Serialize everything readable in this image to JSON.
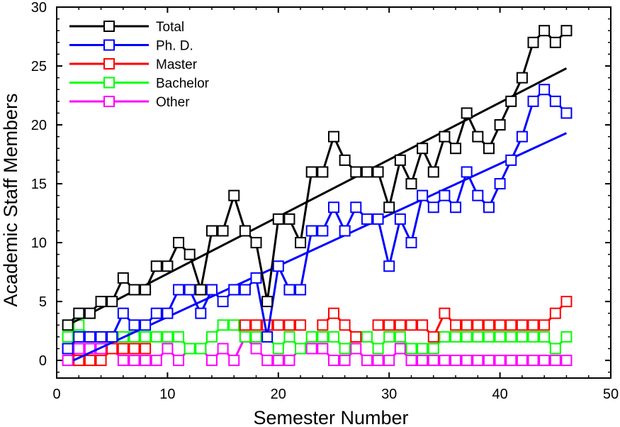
{
  "chart_data": {
    "type": "line",
    "title": "",
    "xlabel": "Semester Number",
    "ylabel": "Academic Staff Members",
    "xlim": [
      0,
      50
    ],
    "ylim": [
      -1.5,
      30
    ],
    "xticks": [
      0,
      10,
      20,
      30,
      40,
      50
    ],
    "yticks": [
      0,
      5,
      10,
      15,
      20,
      25,
      30
    ],
    "grid": false,
    "legend_position": "top-left",
    "x": [
      1,
      2,
      3,
      4,
      5,
      6,
      7,
      8,
      9,
      10,
      11,
      12,
      13,
      14,
      15,
      16,
      17,
      18,
      19,
      20,
      21,
      22,
      23,
      24,
      25,
      26,
      27,
      28,
      29,
      30,
      31,
      32,
      33,
      34,
      35,
      36,
      37,
      38,
      39,
      40,
      41,
      42,
      43,
      44,
      45,
      46
    ],
    "series": [
      {
        "name": "Total",
        "color": "#000000",
        "values": [
          3,
          4,
          4,
          5,
          5,
          7,
          6,
          6,
          8,
          8,
          10,
          9,
          6,
          11,
          11,
          14,
          11,
          10,
          5,
          12,
          12,
          10,
          16,
          16,
          19,
          17,
          16,
          16,
          16,
          13,
          17,
          15,
          18,
          16,
          19,
          18,
          21,
          19,
          18,
          20,
          22,
          24,
          27,
          28,
          27,
          28
        ],
        "trend": [
          [
            1,
            3
          ],
          [
            46,
            24.8
          ]
        ]
      },
      {
        "name": "Ph. D.",
        "color": "#0000ff",
        "values": [
          1,
          2,
          2,
          2,
          2,
          4,
          3,
          3,
          4,
          4,
          6,
          6,
          4,
          6,
          5,
          6,
          6,
          7,
          2,
          8,
          6,
          6,
          11,
          11,
          13,
          11,
          13,
          12,
          12,
          8,
          12,
          10,
          14,
          13,
          14,
          13,
          16,
          14,
          13,
          15,
          17,
          19,
          22,
          23,
          22,
          21
        ],
        "trend": [
          [
            1.5,
            0
          ],
          [
            46,
            19.3
          ]
        ]
      },
      {
        "name": "Master",
        "color": "#ff0000",
        "values": [
          1,
          0,
          0,
          0,
          1,
          1,
          1,
          1,
          null,
          null,
          null,
          null,
          null,
          null,
          null,
          null,
          3,
          3,
          3,
          3,
          3,
          3,
          null,
          3,
          4,
          3,
          2,
          null,
          3,
          3,
          3,
          3,
          3,
          2,
          4,
          3,
          3,
          3,
          3,
          3,
          3,
          3,
          3,
          3,
          4,
          5
        ]
      },
      {
        "name": "Bachelor",
        "color": "#00ff00",
        "values": [
          2,
          3,
          2,
          2,
          2,
          2,
          2,
          2,
          2,
          2,
          2,
          1,
          1,
          2,
          3,
          3,
          2,
          2,
          2,
          1,
          2,
          1,
          2,
          2,
          2,
          1,
          2,
          2,
          1,
          2,
          2,
          1,
          1,
          1,
          2,
          2,
          2,
          2,
          2,
          2,
          2,
          2,
          2,
          2,
          1,
          2
        ]
      },
      {
        "name": "Other",
        "color": "#ff00ff",
        "values": [
          0,
          1,
          1,
          1,
          1,
          0,
          0,
          0,
          0,
          1,
          0,
          1,
          1,
          0,
          1,
          0,
          2,
          1,
          0,
          0,
          0,
          1,
          1,
          1,
          0,
          0,
          1,
          0,
          0,
          0,
          1,
          0,
          0,
          0,
          0,
          0,
          0,
          0,
          0,
          0,
          0,
          0,
          0,
          0,
          0,
          0
        ]
      }
    ]
  }
}
